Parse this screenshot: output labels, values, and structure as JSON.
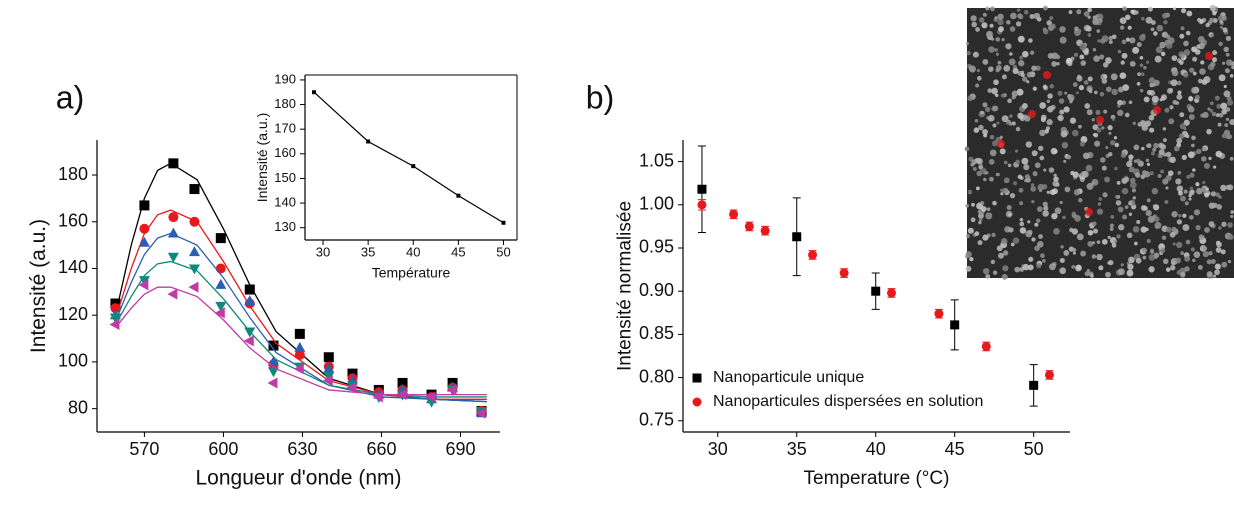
{
  "chart_data": [
    {
      "type": "scatter",
      "label": "a)",
      "x_label": "Longueur d'onde (nm)",
      "y_label": "Intensité (a.u.)",
      "xlim": [
        552,
        705
      ],
      "ylim": [
        70,
        195
      ],
      "xticks": [
        570,
        600,
        630,
        660,
        690
      ],
      "yticks": [
        80,
        100,
        120,
        140,
        160,
        180
      ],
      "x": [
        559,
        570,
        581,
        589,
        599,
        610,
        619,
        629,
        640,
        649,
        659,
        668,
        679,
        687,
        698
      ],
      "fit_x": [
        560,
        565,
        570,
        575,
        580,
        590,
        600,
        610,
        620,
        640,
        660,
        680,
        700
      ],
      "series": [
        {
          "color": "#000000",
          "marker": "square",
          "values": [
            125,
            167,
            185,
            174,
            153,
            131,
            107,
            112,
            102,
            95,
            88,
            91,
            86,
            91,
            79
          ],
          "fit": [
            125,
            150,
            170,
            182,
            185,
            178,
            157,
            133,
            113,
            93,
            86,
            84,
            83
          ]
        },
        {
          "color": "#e8191c",
          "marker": "circle",
          "values": [
            123,
            157,
            162,
            160,
            140,
            125,
            99,
            103,
            98,
            93,
            87,
            88,
            85,
            89,
            79
          ],
          "fit": [
            122,
            140,
            155,
            163,
            165,
            160,
            143,
            124,
            108,
            92,
            86,
            84,
            84
          ]
        },
        {
          "color": "#2b5fb5",
          "marker": "triangle-up",
          "values": [
            120,
            151,
            155,
            147,
            133,
            126,
            100,
            106,
            97,
            92,
            86,
            88,
            84,
            89,
            78
          ],
          "fit": [
            120,
            134,
            146,
            153,
            155,
            150,
            136,
            119,
            104,
            90,
            85,
            84,
            83
          ]
        },
        {
          "color": "#11887a",
          "marker": "triangle-down",
          "values": [
            119,
            135,
            145,
            140,
            124,
            113,
            96,
            98,
            94,
            90,
            85,
            86,
            83,
            88,
            79
          ],
          "fit": [
            118,
            128,
            137,
            142,
            143,
            139,
            127,
            113,
            101,
            90,
            86,
            85,
            85
          ]
        },
        {
          "color": "#c23aa8",
          "marker": "triangle-left",
          "values": [
            116,
            133,
            129,
            132,
            121,
            109,
            91,
            97,
            92,
            89,
            85,
            86,
            85,
            88,
            78
          ],
          "fit": [
            116,
            123,
            129,
            132,
            132,
            128,
            118,
            106,
            97,
            88,
            86,
            86,
            86
          ]
        }
      ]
    },
    {
      "type": "line",
      "x_label": "Température",
      "y_label": "Intensité (a.u.)",
      "xlim": [
        28,
        51.5
      ],
      "ylim": [
        125,
        192
      ],
      "xticks": [
        30,
        35,
        40,
        45,
        50
      ],
      "yticks": [
        130,
        140,
        150,
        160,
        170,
        180,
        190
      ],
      "x": [
        29,
        35,
        40,
        45,
        50
      ],
      "series": [
        {
          "color": "#000000",
          "values": [
            185,
            165,
            155,
            143,
            132
          ]
        }
      ]
    },
    {
      "type": "scatter",
      "label": "b)",
      "x_label": "Temperature (°C)",
      "y_label": "Intensité normalisée",
      "xlim": [
        27.8,
        52.3
      ],
      "ylim": [
        0.737,
        1.075
      ],
      "xticks": [
        30,
        35,
        40,
        45,
        50
      ],
      "yticks": [
        0.75,
        {
          "value": 0.8,
          "label": "0.80"
        },
        0.85,
        {
          "value": 0.9,
          "label": "0.90"
        },
        0.95,
        {
          "value": 1,
          "label": "1.00"
        },
        1.05
      ],
      "legend": "lower left",
      "series": [
        {
          "name": "Nanoparticule unique",
          "color": "#000000",
          "marker": "square",
          "x": [
            29,
            35,
            40,
            45,
            50
          ],
          "values": [
            1.018,
            0.963,
            0.9,
            0.861,
            0.791
          ],
          "errors": [
            0.05,
            0.045,
            0.021,
            0.029,
            0.024
          ]
        },
        {
          "name": "Nanoparticules dispersées en solution",
          "color": "#e8191c",
          "marker": "circle",
          "x": [
            29,
            31,
            32,
            33,
            36,
            38,
            41,
            44,
            47,
            51
          ],
          "values": [
            1.0,
            0.989,
            0.975,
            0.97,
            0.942,
            0.921,
            0.898,
            0.874,
            0.836,
            0.803
          ],
          "errors": [
            0.006,
            0.005,
            0.005,
            0.005,
            0.005,
            0.005,
            0.005,
            0.005,
            0.005,
            0.005
          ]
        }
      ]
    }
  ]
}
